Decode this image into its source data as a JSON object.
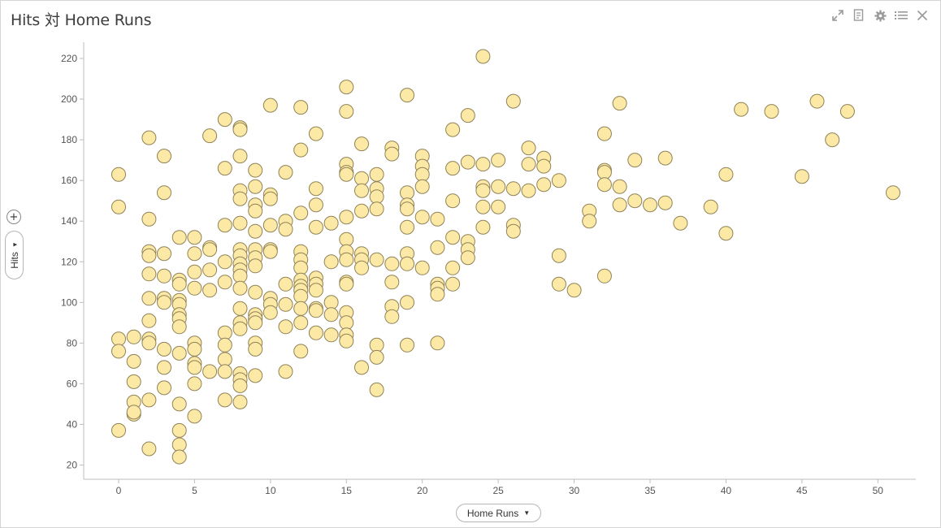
{
  "title": "Hits 対 Home Runs",
  "toolbar": [
    {
      "name": "expand-icon"
    },
    {
      "name": "notes-icon"
    },
    {
      "name": "gear-icon"
    },
    {
      "name": "list-icon"
    },
    {
      "name": "close-icon"
    }
  ],
  "x_axis_button": "Home Runs",
  "y_axis_button": "Hits",
  "add_button": "+",
  "colors": {
    "marker_fill": "#fde9a6",
    "marker_stroke": "#8f8257",
    "axis": "#bdbdbd",
    "text": "#555555"
  },
  "chart_data": {
    "type": "scatter",
    "xlabel": "Home Runs",
    "ylabel": "Hits",
    "xlim": [
      -2.3,
      52.5
    ],
    "ylim": [
      13,
      228
    ],
    "xticks": [
      0,
      5,
      10,
      15,
      20,
      25,
      30,
      35,
      40,
      45,
      50
    ],
    "yticks": [
      20,
      40,
      60,
      80,
      100,
      120,
      140,
      160,
      180,
      200,
      220
    ],
    "grid": false,
    "points": [
      [
        0,
        163
      ],
      [
        0,
        147
      ],
      [
        0,
        82
      ],
      [
        0,
        76
      ],
      [
        0,
        37
      ],
      [
        1,
        83
      ],
      [
        1,
        71
      ],
      [
        1,
        61
      ],
      [
        1,
        51
      ],
      [
        1,
        45
      ],
      [
        1,
        46
      ],
      [
        2,
        181
      ],
      [
        2,
        141
      ],
      [
        2,
        125
      ],
      [
        2,
        123
      ],
      [
        2,
        114
      ],
      [
        2,
        102
      ],
      [
        2,
        91
      ],
      [
        2,
        82
      ],
      [
        2,
        80
      ],
      [
        2,
        52
      ],
      [
        2,
        28
      ],
      [
        3,
        172
      ],
      [
        3,
        154
      ],
      [
        3,
        124
      ],
      [
        3,
        113
      ],
      [
        3,
        102
      ],
      [
        3,
        100
      ],
      [
        3,
        77
      ],
      [
        3,
        68
      ],
      [
        3,
        58
      ],
      [
        4,
        132
      ],
      [
        4,
        111
      ],
      [
        4,
        109
      ],
      [
        4,
        101
      ],
      [
        4,
        99
      ],
      [
        4,
        94
      ],
      [
        4,
        92
      ],
      [
        4,
        88
      ],
      [
        4,
        75
      ],
      [
        4,
        50
      ],
      [
        4,
        37
      ],
      [
        4,
        30
      ],
      [
        4,
        24
      ],
      [
        5,
        132
      ],
      [
        5,
        124
      ],
      [
        5,
        115
      ],
      [
        5,
        107
      ],
      [
        5,
        80
      ],
      [
        5,
        77
      ],
      [
        5,
        70
      ],
      [
        5,
        68
      ],
      [
        5,
        60
      ],
      [
        5,
        44
      ],
      [
        6,
        182
      ],
      [
        6,
        127
      ],
      [
        6,
        126
      ],
      [
        6,
        116
      ],
      [
        6,
        106
      ],
      [
        6,
        66
      ],
      [
        7,
        190
      ],
      [
        7,
        166
      ],
      [
        7,
        138
      ],
      [
        7,
        120
      ],
      [
        7,
        110
      ],
      [
        7,
        85
      ],
      [
        7,
        79
      ],
      [
        7,
        72
      ],
      [
        7,
        66
      ],
      [
        7,
        52
      ],
      [
        8,
        186
      ],
      [
        8,
        185
      ],
      [
        8,
        172
      ],
      [
        8,
        155
      ],
      [
        8,
        151
      ],
      [
        8,
        139
      ],
      [
        8,
        126
      ],
      [
        8,
        123
      ],
      [
        8,
        119
      ],
      [
        8,
        116
      ],
      [
        8,
        113
      ],
      [
        8,
        107
      ],
      [
        8,
        97
      ],
      [
        8,
        90
      ],
      [
        8,
        87
      ],
      [
        8,
        65
      ],
      [
        8,
        62
      ],
      [
        8,
        59
      ],
      [
        8,
        51
      ],
      [
        9,
        165
      ],
      [
        9,
        157
      ],
      [
        9,
        148
      ],
      [
        9,
        145
      ],
      [
        9,
        135
      ],
      [
        9,
        126
      ],
      [
        9,
        122
      ],
      [
        9,
        118
      ],
      [
        9,
        105
      ],
      [
        9,
        94
      ],
      [
        9,
        92
      ],
      [
        9,
        90
      ],
      [
        9,
        80
      ],
      [
        9,
        77
      ],
      [
        9,
        64
      ],
      [
        10,
        197
      ],
      [
        10,
        153
      ],
      [
        10,
        151
      ],
      [
        10,
        138
      ],
      [
        10,
        126
      ],
      [
        10,
        125
      ],
      [
        10,
        102
      ],
      [
        10,
        99
      ],
      [
        10,
        95
      ],
      [
        11,
        164
      ],
      [
        11,
        140
      ],
      [
        11,
        136
      ],
      [
        11,
        109
      ],
      [
        11,
        99
      ],
      [
        11,
        88
      ],
      [
        11,
        66
      ],
      [
        12,
        196
      ],
      [
        12,
        175
      ],
      [
        12,
        144
      ],
      [
        12,
        125
      ],
      [
        12,
        121
      ],
      [
        12,
        117
      ],
      [
        12,
        111
      ],
      [
        12,
        108
      ],
      [
        12,
        106
      ],
      [
        12,
        103
      ],
      [
        12,
        97
      ],
      [
        12,
        90
      ],
      [
        12,
        76
      ],
      [
        13,
        183
      ],
      [
        13,
        156
      ],
      [
        13,
        148
      ],
      [
        13,
        137
      ],
      [
        13,
        112
      ],
      [
        13,
        109
      ],
      [
        13,
        106
      ],
      [
        13,
        97
      ],
      [
        13,
        96
      ],
      [
        13,
        85
      ],
      [
        14,
        139
      ],
      [
        14,
        120
      ],
      [
        14,
        100
      ],
      [
        14,
        94
      ],
      [
        14,
        84
      ],
      [
        15,
        206
      ],
      [
        15,
        194
      ],
      [
        15,
        168
      ],
      [
        15,
        164
      ],
      [
        15,
        163
      ],
      [
        15,
        142
      ],
      [
        15,
        131
      ],
      [
        15,
        125
      ],
      [
        15,
        121
      ],
      [
        15,
        110
      ],
      [
        15,
        109
      ],
      [
        15,
        95
      ],
      [
        15,
        90
      ],
      [
        15,
        84
      ],
      [
        15,
        81
      ],
      [
        16,
        178
      ],
      [
        16,
        161
      ],
      [
        16,
        155
      ],
      [
        16,
        145
      ],
      [
        16,
        124
      ],
      [
        16,
        121
      ],
      [
        16,
        117
      ],
      [
        16,
        68
      ],
      [
        17,
        163
      ],
      [
        17,
        156
      ],
      [
        17,
        152
      ],
      [
        17,
        146
      ],
      [
        17,
        121
      ],
      [
        17,
        79
      ],
      [
        17,
        73
      ],
      [
        17,
        57
      ],
      [
        18,
        176
      ],
      [
        18,
        173
      ],
      [
        18,
        119
      ],
      [
        18,
        110
      ],
      [
        18,
        98
      ],
      [
        18,
        93
      ],
      [
        19,
        202
      ],
      [
        19,
        154
      ],
      [
        19,
        148
      ],
      [
        19,
        146
      ],
      [
        19,
        137
      ],
      [
        19,
        124
      ],
      [
        19,
        119
      ],
      [
        19,
        100
      ],
      [
        19,
        79
      ],
      [
        20,
        172
      ],
      [
        20,
        167
      ],
      [
        20,
        163
      ],
      [
        20,
        157
      ],
      [
        20,
        142
      ],
      [
        20,
        117
      ],
      [
        21,
        141
      ],
      [
        21,
        127
      ],
      [
        21,
        109
      ],
      [
        21,
        107
      ],
      [
        21,
        104
      ],
      [
        21,
        80
      ],
      [
        22,
        185
      ],
      [
        22,
        166
      ],
      [
        22,
        150
      ],
      [
        22,
        132
      ],
      [
        22,
        117
      ],
      [
        22,
        109
      ],
      [
        23,
        192
      ],
      [
        23,
        169
      ],
      [
        23,
        130
      ],
      [
        23,
        126
      ],
      [
        23,
        122
      ],
      [
        24,
        221
      ],
      [
        24,
        168
      ],
      [
        24,
        157
      ],
      [
        24,
        155
      ],
      [
        24,
        147
      ],
      [
        24,
        137
      ],
      [
        25,
        170
      ],
      [
        25,
        157
      ],
      [
        25,
        147
      ],
      [
        26,
        199
      ],
      [
        26,
        156
      ],
      [
        26,
        138
      ],
      [
        26,
        135
      ],
      [
        27,
        176
      ],
      [
        27,
        168
      ],
      [
        27,
        155
      ],
      [
        28,
        171
      ],
      [
        28,
        167
      ],
      [
        28,
        158
      ],
      [
        29,
        160
      ],
      [
        29,
        123
      ],
      [
        29,
        109
      ],
      [
        30,
        106
      ],
      [
        31,
        145
      ],
      [
        31,
        140
      ],
      [
        32,
        183
      ],
      [
        32,
        165
      ],
      [
        32,
        164
      ],
      [
        32,
        158
      ],
      [
        32,
        113
      ],
      [
        33,
        198
      ],
      [
        33,
        157
      ],
      [
        33,
        148
      ],
      [
        34,
        170
      ],
      [
        34,
        150
      ],
      [
        35,
        148
      ],
      [
        36,
        171
      ],
      [
        36,
        149
      ],
      [
        37,
        139
      ],
      [
        39,
        147
      ],
      [
        40,
        163
      ],
      [
        40,
        134
      ],
      [
        41,
        195
      ],
      [
        43,
        194
      ],
      [
        45,
        162
      ],
      [
        46,
        199
      ],
      [
        47,
        180
      ],
      [
        48,
        194
      ],
      [
        51,
        154
      ]
    ]
  }
}
